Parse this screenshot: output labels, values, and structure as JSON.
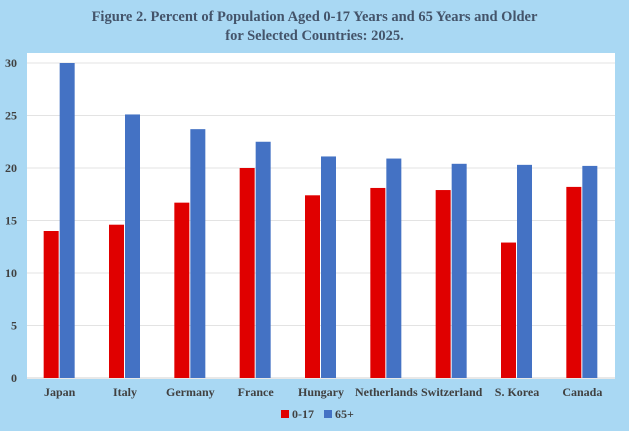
{
  "chart_data": {
    "type": "bar",
    "title_line1": "Figure 2. Percent of Population Aged 0-17 Years and 65 Years and Older",
    "title_line2": "for Selected Countries: 2025.",
    "categories": [
      "Japan",
      "Italy",
      "Germany",
      "France",
      "Hungary",
      "Netherlands",
      "Switzerland",
      "S. Korea",
      "Canada"
    ],
    "series": [
      {
        "name": "0-17",
        "color": "#e00000",
        "values": [
          14.0,
          14.6,
          16.7,
          20.0,
          17.4,
          18.1,
          17.9,
          12.9,
          18.2
        ]
      },
      {
        "name": "65+",
        "color": "#4472c4",
        "values": [
          30.0,
          25.1,
          23.7,
          22.5,
          21.1,
          20.9,
          20.4,
          20.3,
          20.2
        ]
      }
    ],
    "yticks": [
      "0",
      "5",
      "10",
      "15",
      "20",
      "25",
      "30"
    ],
    "ylim": [
      0,
      30
    ],
    "xlabel": "",
    "ylabel": "",
    "grid": true,
    "legend_position": "bottom"
  }
}
